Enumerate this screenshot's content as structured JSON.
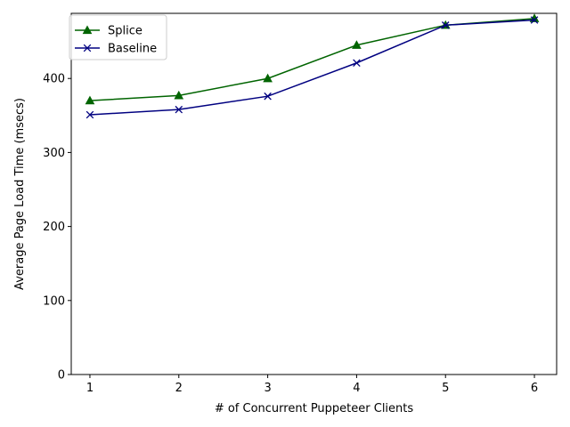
{
  "chart_data": {
    "type": "line",
    "title": "",
    "xlabel": "# of Concurrent Puppeteer Clients",
    "ylabel": "Average Page Load Time (msecs)",
    "x": [
      1,
      2,
      3,
      4,
      5,
      6
    ],
    "xticks": [
      "1",
      "2",
      "3",
      "4",
      "5",
      "6"
    ],
    "yticks": [
      "0",
      "100",
      "200",
      "300",
      "400"
    ],
    "xlim": [
      0.79,
      6.25
    ],
    "ylim": [
      0,
      488
    ],
    "legend_position": "top-left",
    "series": [
      {
        "name": "Splice",
        "color": "#006400",
        "marker": "triangle",
        "values": [
          370,
          377,
          400,
          445,
          472,
          481
        ]
      },
      {
        "name": "Baseline",
        "color": "#000080",
        "marker": "x",
        "values": [
          351,
          358,
          376,
          421,
          472,
          479
        ]
      }
    ]
  }
}
